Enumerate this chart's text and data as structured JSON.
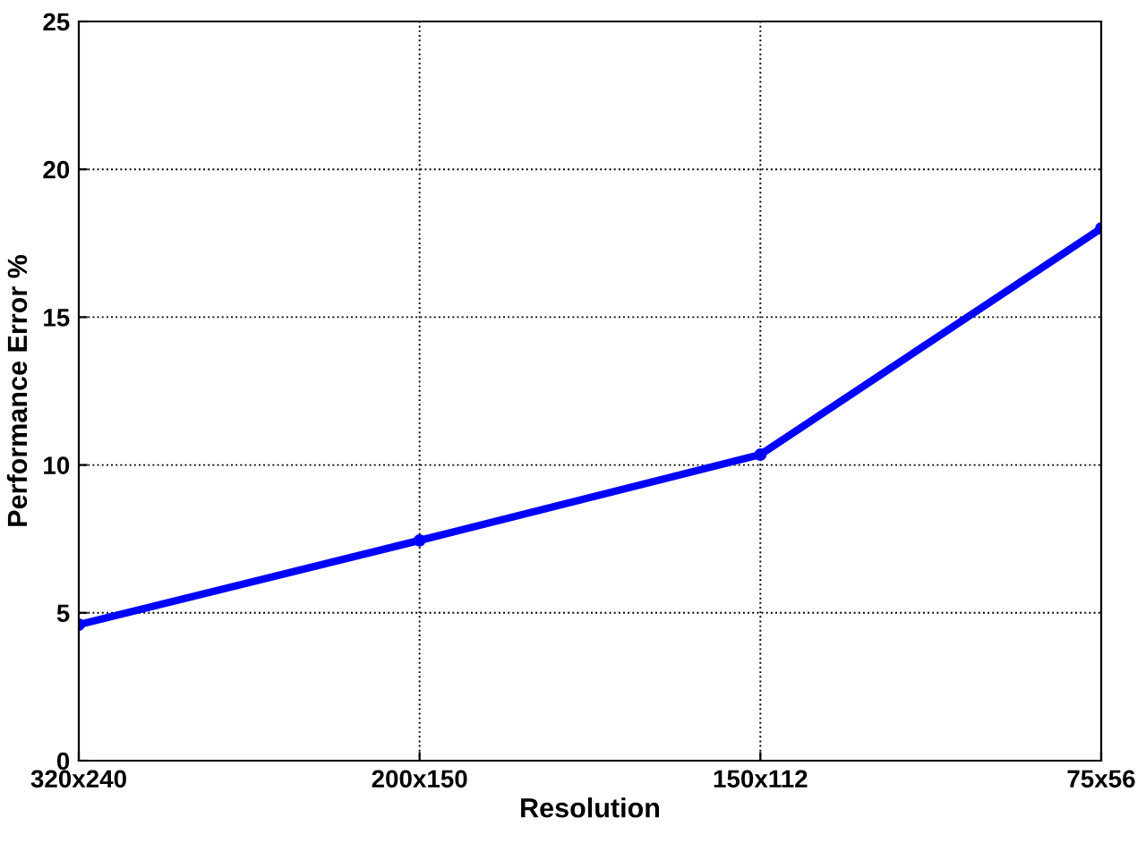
{
  "chart_data": {
    "type": "line",
    "xlabel": "Resolution",
    "ylabel": "Performance Error %",
    "categories": [
      "320x240",
      "200x150",
      "150x112",
      "75x56"
    ],
    "series": [
      {
        "color": "#0000ff",
        "values": [
          4.6,
          7.45,
          10.35,
          18.0
        ]
      }
    ],
    "ylim": [
      0,
      25
    ],
    "yticks": [
      0,
      5,
      10,
      15,
      20,
      25
    ],
    "grid": true,
    "marker": "circle",
    "line_style": "solid"
  }
}
